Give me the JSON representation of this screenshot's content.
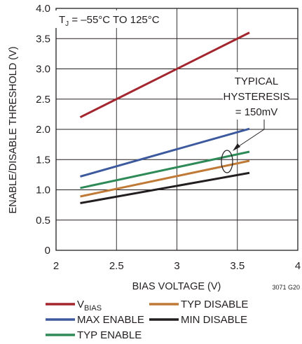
{
  "chart_data": {
    "type": "line",
    "xlabel": "BIAS VOLTAGE (V)",
    "ylabel": "ENABLE/DISABLE THRESHOLD (V)",
    "xlim": [
      2,
      4
    ],
    "ylim": [
      0,
      4
    ],
    "x_ticks": [
      "2",
      "2.5",
      "3",
      "3.5",
      "4"
    ],
    "y_ticks": [
      "0",
      "0.5",
      "1.0",
      "1.5",
      "2.0",
      "2.5",
      "3.0",
      "3.5",
      "4.0"
    ],
    "grid": true,
    "legend_position": "bottom",
    "figure_id": "3071 G20",
    "condition": {
      "prefix": "T",
      "subscript": "J",
      "text": " = –55°C TO 125°C"
    },
    "annotation": [
      "TYPICAL",
      "HYSTERESIS",
      "= 150mV"
    ],
    "series": [
      {
        "name": "V",
        "name_sub": "BIAS",
        "color": "#a3262f",
        "x": [
          2.2,
          3.6
        ],
        "y": [
          2.2,
          3.6
        ]
      },
      {
        "name": "MAX ENABLE",
        "color": "#3d5a9e",
        "x": [
          2.2,
          3.6
        ],
        "y": [
          1.22,
          2.01
        ]
      },
      {
        "name": "TYP ENABLE",
        "color": "#2e8a57",
        "x": [
          2.2,
          3.6
        ],
        "y": [
          1.03,
          1.63
        ]
      },
      {
        "name": "TYP DISABLE",
        "color": "#c07a37",
        "x": [
          2.2,
          3.6
        ],
        "y": [
          0.89,
          1.48
        ]
      },
      {
        "name": "MIN DISABLE",
        "color": "#231f20",
        "x": [
          2.2,
          3.6
        ],
        "y": [
          0.78,
          1.28
        ]
      }
    ]
  }
}
